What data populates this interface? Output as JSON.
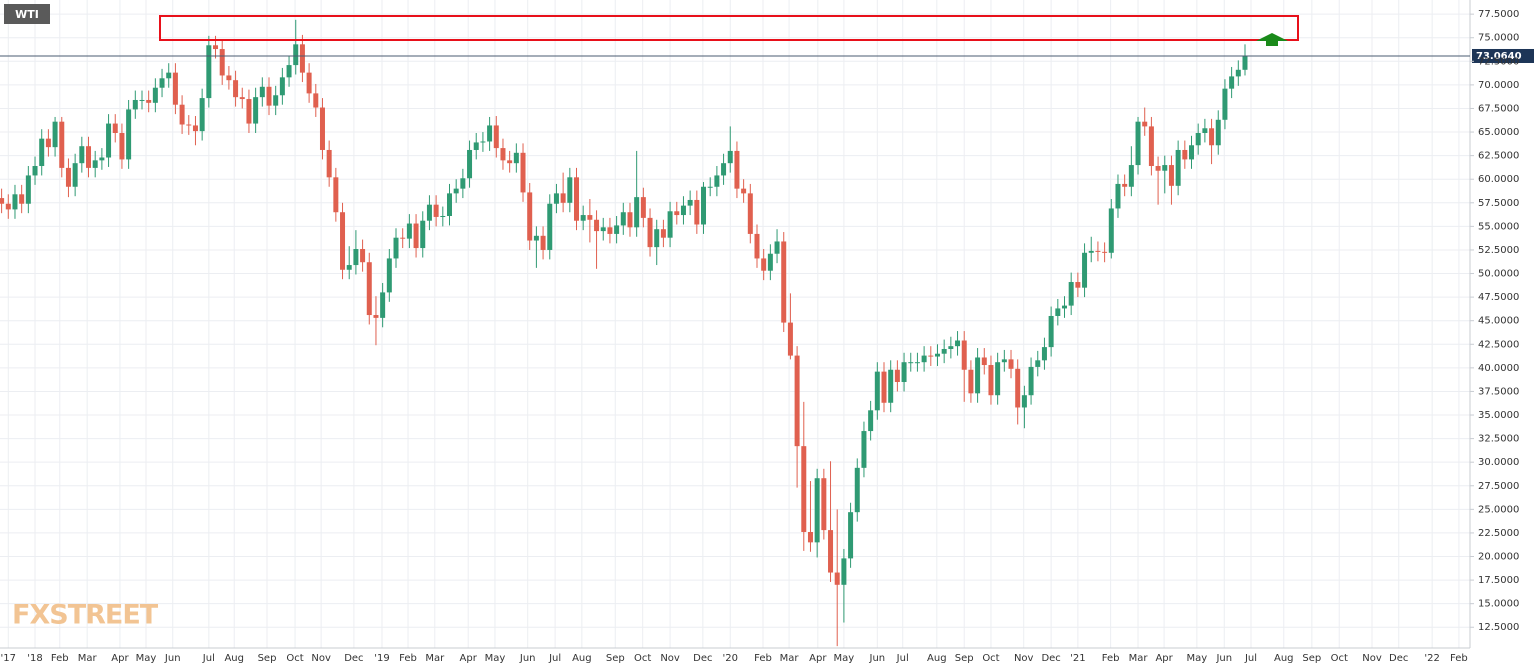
{
  "chart_data": {
    "type": "candlestick",
    "title": "WTI",
    "logo": "FXSTREET",
    "up_color": "#2f9a73",
    "down_color": "#e0604f",
    "grid": true,
    "current_price": {
      "value": 73.064,
      "label": "73.0640"
    },
    "xlim": [
      -0.24,
      219.66
    ],
    "ylim": [
      10.3,
      79.0
    ],
    "xticks": [
      {
        "value": 1.0,
        "label": "'17"
      },
      {
        "value": 5.0,
        "label": "'18"
      },
      {
        "value": 8.7,
        "label": "Feb"
      },
      {
        "value": 12.8,
        "label": "Mar"
      },
      {
        "value": 17.7,
        "label": "Apr"
      },
      {
        "value": 21.6,
        "label": "May"
      },
      {
        "value": 25.6,
        "label": "Jun"
      },
      {
        "value": 31.0,
        "label": "Jul"
      },
      {
        "value": 34.8,
        "label": "Aug"
      },
      {
        "value": 39.7,
        "label": "Sep"
      },
      {
        "value": 43.9,
        "label": "Oct"
      },
      {
        "value": 47.8,
        "label": "Nov"
      },
      {
        "value": 52.7,
        "label": "Dec"
      },
      {
        "value": 56.9,
        "label": "'19"
      },
      {
        "value": 60.8,
        "label": "Feb"
      },
      {
        "value": 64.8,
        "label": "Mar"
      },
      {
        "value": 69.8,
        "label": "Apr"
      },
      {
        "value": 73.8,
        "label": "May"
      },
      {
        "value": 78.7,
        "label": "Jun"
      },
      {
        "value": 82.8,
        "label": "Jul"
      },
      {
        "value": 86.8,
        "label": "Aug"
      },
      {
        "value": 91.8,
        "label": "Sep"
      },
      {
        "value": 95.9,
        "label": "Oct"
      },
      {
        "value": 100.0,
        "label": "Nov"
      },
      {
        "value": 104.9,
        "label": "Dec"
      },
      {
        "value": 109.0,
        "label": "'20"
      },
      {
        "value": 113.9,
        "label": "Feb"
      },
      {
        "value": 117.8,
        "label": "Mar"
      },
      {
        "value": 122.1,
        "label": "Apr"
      },
      {
        "value": 126.0,
        "label": "May"
      },
      {
        "value": 131.0,
        "label": "Jun"
      },
      {
        "value": 134.8,
        "label": "Jul"
      },
      {
        "value": 139.9,
        "label": "Aug"
      },
      {
        "value": 144.0,
        "label": "Sep"
      },
      {
        "value": 148.0,
        "label": "Oct"
      },
      {
        "value": 152.9,
        "label": "Nov"
      },
      {
        "value": 157.0,
        "label": "Dec"
      },
      {
        "value": 161.0,
        "label": "'21"
      },
      {
        "value": 165.9,
        "label": "Feb"
      },
      {
        "value": 170.0,
        "label": "Mar"
      },
      {
        "value": 173.9,
        "label": "Apr"
      },
      {
        "value": 178.8,
        "label": "May"
      },
      {
        "value": 182.9,
        "label": "Jun"
      },
      {
        "value": 186.9,
        "label": "Jul"
      },
      {
        "value": 191.8,
        "label": "Aug"
      },
      {
        "value": 196.0,
        "label": "Sep"
      },
      {
        "value": 200.1,
        "label": "Oct"
      },
      {
        "value": 205.0,
        "label": "Nov"
      },
      {
        "value": 209.0,
        "label": "Dec"
      },
      {
        "value": 214.0,
        "label": "'22"
      },
      {
        "value": 218.0,
        "label": "Feb"
      }
    ],
    "yticks": [
      {
        "value": 12.5,
        "label": "12.5000"
      },
      {
        "value": 15,
        "label": "15.0000"
      },
      {
        "value": 17.5,
        "label": "17.5000"
      },
      {
        "value": 20,
        "label": "20.0000"
      },
      {
        "value": 22.5,
        "label": "22.5000"
      },
      {
        "value": 25,
        "label": "25.0000"
      },
      {
        "value": 27.5,
        "label": "27.5000"
      },
      {
        "value": 30,
        "label": "30.0000"
      },
      {
        "value": 32.5,
        "label": "32.5000"
      },
      {
        "value": 35,
        "label": "35.0000"
      },
      {
        "value": 37.5,
        "label": "37.5000"
      },
      {
        "value": 40,
        "label": "40.0000"
      },
      {
        "value": 42.5,
        "label": "42.5000"
      },
      {
        "value": 45,
        "label": "45.0000"
      },
      {
        "value": 47.5,
        "label": "47.5000"
      },
      {
        "value": 50,
        "label": "50.0000"
      },
      {
        "value": 52.5,
        "label": "52.5000"
      },
      {
        "value": 55,
        "label": "55.0000"
      },
      {
        "value": 57.5,
        "label": "57.5000"
      },
      {
        "value": 60,
        "label": "60.0000"
      },
      {
        "value": 62.5,
        "label": "62.5000"
      },
      {
        "value": 65,
        "label": "65.0000"
      },
      {
        "value": 67.5,
        "label": "67.5000"
      },
      {
        "value": 70,
        "label": "70.0000"
      },
      {
        "value": 72.5,
        "label": "72.5000"
      },
      {
        "value": 75,
        "label": "75.0000"
      },
      {
        "value": 77.5,
        "label": "77.5000"
      }
    ],
    "open": [
      58.0,
      57.4,
      56.8,
      58.4,
      57.4,
      60.4,
      61.4,
      64.3,
      63.4,
      66.1,
      61.2,
      59.2,
      61.7,
      63.5,
      61.2,
      62.0,
      62.3,
      65.9,
      64.9,
      62.1,
      67.4,
      68.4,
      68.4,
      68.1,
      69.7,
      70.7,
      71.3,
      67.9,
      65.8,
      65.7,
      65.1,
      68.6,
      74.2,
      73.8,
      71.0,
      70.5,
      68.7,
      68.5,
      65.9,
      68.7,
      69.8,
      67.8,
      68.9,
      70.8,
      72.1,
      74.3,
      71.3,
      69.1,
      67.6,
      63.1,
      60.2,
      56.5,
      50.4,
      50.9,
      52.6,
      51.2,
      45.6,
      45.3,
      48.0,
      51.6,
      53.8,
      53.7,
      55.3,
      52.7,
      55.6,
      57.3,
      56.0,
      56.1,
      58.5,
      59.0,
      60.1,
      63.1,
      63.9,
      64.0,
      65.7,
      63.3,
      62.0,
      61.7,
      62.8,
      58.6,
      53.5,
      54.0,
      52.5,
      57.4,
      58.5,
      57.5,
      60.2,
      55.6,
      56.2,
      55.7,
      54.5,
      54.9,
      54.2,
      55.1,
      56.5,
      54.9,
      58.1,
      55.9,
      52.8,
      54.7,
      53.8,
      56.6,
      56.2,
      57.2,
      57.8,
      55.2,
      59.2,
      59.2,
      60.4,
      61.7,
      63.0,
      59.0,
      58.5,
      54.2,
      51.6,
      50.3,
      52.1,
      53.4,
      44.8,
      41.3,
      31.7,
      22.6,
      21.5,
      28.3,
      22.8,
      18.3,
      17.0,
      19.8,
      24.7,
      29.4,
      33.3,
      35.5,
      39.6,
      36.3,
      39.8,
      38.5,
      40.6,
      40.6,
      40.6,
      41.3,
      41.2,
      41.5,
      42.0,
      42.3,
      42.9,
      39.8,
      37.3,
      41.1,
      40.3,
      37.1,
      40.6,
      40.9,
      39.9,
      35.8,
      37.1,
      40.1,
      40.8,
      42.2,
      45.5,
      46.3,
      46.6,
      49.1,
      48.5,
      52.2,
      52.4,
      52.3,
      52.2,
      56.9,
      59.5,
      59.2,
      61.5,
      66.1,
      65.6,
      61.4,
      60.9,
      61.5,
      59.3,
      63.1,
      62.1,
      63.6,
      64.9,
      65.4,
      63.6,
      66.3,
      69.6,
      70.9,
      71.6
    ],
    "high": [
      59.0,
      58.4,
      59.4,
      59.4,
      61.4,
      62.4,
      65.3,
      65.3,
      66.6,
      66.6,
      62.2,
      62.7,
      64.5,
      64.5,
      63.0,
      63.3,
      66.9,
      66.9,
      65.9,
      68.4,
      69.4,
      69.4,
      69.4,
      70.7,
      71.7,
      72.3,
      72.3,
      68.9,
      66.8,
      66.7,
      69.6,
      75.2,
      75.2,
      74.8,
      72.0,
      71.5,
      69.7,
      69.5,
      69.7,
      70.8,
      70.8,
      69.9,
      71.8,
      73.1,
      76.9,
      75.3,
      72.3,
      70.1,
      68.6,
      64.1,
      61.2,
      57.5,
      52.9,
      54.6,
      53.6,
      52.2,
      47.6,
      49.0,
      52.6,
      54.8,
      54.8,
      56.3,
      56.3,
      56.6,
      58.3,
      58.3,
      57.1,
      59.5,
      60.0,
      61.1,
      64.1,
      64.9,
      65.0,
      66.6,
      66.7,
      64.3,
      63.0,
      63.8,
      63.8,
      59.6,
      55.0,
      55.0,
      58.4,
      59.5,
      60.7,
      61.2,
      61.2,
      57.2,
      57.9,
      56.7,
      55.9,
      55.9,
      56.1,
      57.5,
      57.5,
      63.0,
      59.1,
      56.9,
      55.7,
      55.7,
      57.6,
      57.6,
      58.2,
      58.8,
      58.8,
      59.7,
      60.2,
      61.4,
      62.7,
      65.6,
      64.0,
      60.0,
      59.5,
      55.2,
      52.6,
      53.1,
      54.7,
      54.4,
      47.9,
      42.3,
      36.4,
      28.0,
      29.3,
      29.3,
      30.1,
      25.0,
      20.8,
      25.7,
      30.4,
      34.3,
      36.5,
      40.6,
      40.6,
      40.8,
      40.8,
      41.6,
      41.6,
      41.6,
      42.3,
      42.3,
      42.5,
      43.0,
      43.3,
      43.9,
      43.9,
      40.8,
      42.1,
      42.1,
      41.3,
      41.6,
      41.9,
      41.9,
      40.9,
      38.1,
      41.1,
      41.8,
      43.2,
      46.5,
      47.3,
      47.6,
      50.1,
      50.1,
      53.2,
      53.9,
      53.4,
      53.3,
      57.9,
      60.5,
      60.5,
      63.5,
      66.6,
      67.6,
      66.6,
      62.4,
      62.5,
      62.5,
      64.1,
      64.1,
      64.6,
      65.9,
      66.4,
      66.4,
      67.3,
      70.6,
      71.9,
      72.6,
      74.3
    ],
    "low": [
      56.4,
      55.8,
      55.8,
      56.4,
      56.4,
      59.4,
      60.4,
      62.4,
      62.4,
      60.2,
      58.1,
      58.2,
      60.7,
      60.2,
      60.2,
      61.0,
      61.3,
      63.9,
      61.1,
      61.1,
      66.4,
      67.4,
      67.1,
      67.1,
      68.7,
      69.7,
      66.9,
      64.8,
      64.7,
      63.6,
      64.1,
      67.6,
      72.8,
      70.0,
      69.5,
      67.7,
      67.5,
      64.9,
      64.9,
      67.7,
      66.8,
      66.8,
      67.9,
      69.8,
      71.1,
      70.3,
      68.1,
      66.6,
      62.1,
      59.2,
      55.5,
      49.4,
      49.4,
      49.9,
      50.2,
      44.6,
      42.4,
      44.3,
      47.0,
      50.6,
      52.7,
      52.7,
      51.7,
      51.7,
      54.6,
      55.0,
      55.0,
      55.1,
      57.5,
      58.0,
      59.1,
      62.1,
      62.9,
      63.0,
      62.3,
      61.0,
      60.7,
      60.7,
      57.6,
      52.5,
      50.6,
      51.5,
      51.5,
      56.4,
      56.5,
      56.5,
      54.6,
      54.6,
      53.3,
      50.5,
      53.5,
      53.2,
      53.2,
      54.1,
      53.9,
      53.9,
      54.9,
      51.8,
      50.9,
      52.8,
      52.8,
      55.2,
      55.2,
      56.2,
      54.2,
      54.2,
      58.2,
      58.2,
      59.4,
      60.7,
      58.0,
      57.5,
      53.2,
      50.6,
      49.3,
      49.3,
      51.1,
      43.8,
      40.9,
      27.3,
      20.6,
      20.5,
      19.9,
      21.8,
      17.3,
      10.5,
      13.0,
      18.8,
      23.7,
      28.4,
      32.3,
      34.5,
      35.3,
      35.3,
      37.5,
      37.5,
      39.6,
      39.6,
      39.6,
      40.2,
      40.2,
      40.5,
      41.0,
      41.3,
      36.4,
      36.3,
      36.3,
      39.3,
      36.1,
      36.1,
      39.6,
      38.9,
      34.0,
      33.6,
      36.1,
      39.1,
      39.8,
      41.2,
      44.5,
      45.3,
      45.6,
      47.5,
      47.5,
      51.2,
      51.3,
      51.2,
      51.6,
      55.9,
      58.2,
      58.2,
      60.5,
      64.6,
      60.4,
      57.3,
      58.5,
      57.3,
      58.3,
      61.1,
      61.1,
      62.6,
      63.9,
      61.6,
      62.6,
      65.3,
      68.6,
      69.9,
      71.0
    ],
    "close": [
      57.4,
      56.8,
      58.4,
      57.4,
      60.4,
      61.4,
      64.3,
      63.4,
      66.1,
      61.2,
      59.2,
      61.7,
      63.5,
      61.2,
      62.0,
      62.3,
      65.9,
      64.9,
      62.1,
      67.4,
      68.4,
      68.4,
      68.1,
      69.7,
      70.7,
      71.3,
      67.9,
      65.8,
      65.7,
      65.1,
      68.6,
      74.2,
      73.8,
      71.0,
      70.5,
      68.7,
      68.5,
      65.9,
      68.7,
      69.8,
      67.8,
      68.9,
      70.8,
      72.1,
      74.3,
      71.3,
      69.1,
      67.6,
      63.1,
      60.2,
      56.5,
      50.4,
      50.9,
      52.6,
      51.2,
      45.6,
      45.3,
      48.0,
      51.6,
      53.8,
      53.7,
      55.3,
      52.7,
      55.6,
      57.3,
      56.0,
      56.1,
      58.5,
      59.0,
      60.1,
      63.1,
      63.9,
      64.0,
      65.7,
      63.3,
      62.0,
      61.7,
      62.8,
      58.6,
      53.5,
      54.0,
      52.5,
      57.4,
      58.5,
      57.5,
      60.2,
      55.6,
      56.2,
      55.7,
      54.5,
      54.9,
      54.2,
      55.1,
      56.5,
      54.9,
      58.1,
      55.9,
      52.8,
      54.7,
      53.8,
      56.6,
      56.2,
      57.2,
      57.8,
      55.2,
      59.2,
      59.2,
      60.4,
      61.7,
      63.0,
      59.0,
      58.5,
      54.2,
      51.6,
      50.3,
      52.1,
      53.4,
      44.8,
      41.3,
      31.7,
      22.6,
      21.5,
      28.3,
      22.8,
      18.3,
      17.0,
      19.8,
      24.7,
      29.4,
      33.3,
      35.5,
      39.6,
      36.3,
      39.8,
      38.5,
      40.6,
      40.6,
      40.6,
      41.3,
      41.2,
      41.5,
      42.0,
      42.3,
      42.9,
      39.8,
      37.3,
      41.1,
      40.3,
      37.1,
      40.6,
      40.9,
      39.9,
      35.8,
      37.1,
      40.1,
      40.8,
      42.2,
      45.5,
      46.3,
      46.6,
      49.1,
      48.5,
      52.2,
      52.4,
      52.3,
      52.2,
      56.9,
      59.5,
      59.2,
      61.5,
      66.1,
      65.6,
      61.4,
      60.9,
      61.5,
      59.3,
      63.1,
      62.1,
      63.6,
      64.9,
      65.4,
      63.6,
      66.3,
      69.6,
      70.9,
      71.6,
      73.1
    ]
  }
}
